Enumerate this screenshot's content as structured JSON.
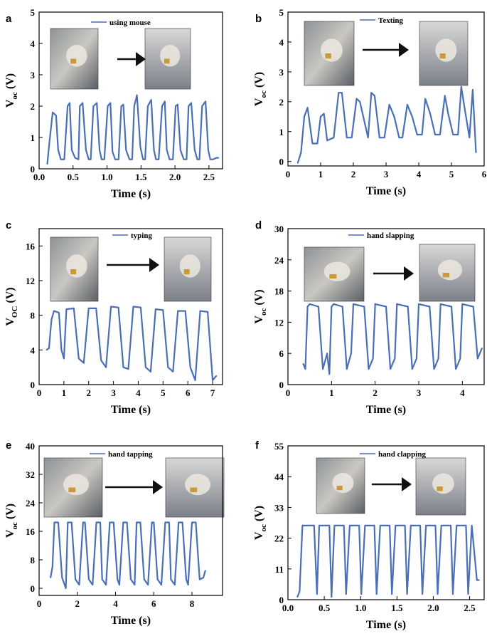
{
  "colors": {
    "line": "#4a6fb5",
    "axis": "#000000",
    "arrow": "#111111"
  },
  "chart_data": [
    {
      "type": "line",
      "panel": "a",
      "legend": "using  mouse",
      "xlabel": "Time (s)",
      "ylabel": "V",
      "ylabel_sub": "oc",
      "ylabel_unit": "(V)",
      "xlim": [
        0.0,
        2.7
      ],
      "ylim": [
        0,
        5
      ],
      "xticks": [
        "0.0",
        "0.5",
        "1.0",
        "1.5",
        "2.0",
        "2.5"
      ],
      "yticks": [
        "0",
        "1",
        "2",
        "3",
        "4",
        "5"
      ],
      "series": [
        {
          "name": "using  mouse",
          "x": [
            0.12,
            0.15,
            0.2,
            0.25,
            0.28,
            0.32,
            0.37,
            0.42,
            0.45,
            0.48,
            0.53,
            0.58,
            0.6,
            0.64,
            0.69,
            0.73,
            0.76,
            0.8,
            0.85,
            0.89,
            0.92,
            0.96,
            1.01,
            1.05,
            1.08,
            1.12,
            1.17,
            1.21,
            1.24,
            1.28,
            1.33,
            1.37,
            1.4,
            1.44,
            1.49,
            1.53,
            1.56,
            1.6,
            1.65,
            1.69,
            1.72,
            1.76,
            1.81,
            1.85,
            1.88,
            1.92,
            1.97,
            2.01,
            2.04,
            2.08,
            2.13,
            2.17,
            2.2,
            2.24,
            2.29,
            2.33,
            2.36,
            2.4,
            2.45,
            2.49,
            2.52,
            2.56,
            2.61,
            2.64
          ],
          "values": [
            0.15,
            0.8,
            1.8,
            1.7,
            0.6,
            0.3,
            0.3,
            2.0,
            2.1,
            0.6,
            0.35,
            0.3,
            2.0,
            2.1,
            0.6,
            0.3,
            0.3,
            2.0,
            2.1,
            0.6,
            0.3,
            0.3,
            2.0,
            2.1,
            0.55,
            0.3,
            0.3,
            2.0,
            2.05,
            0.6,
            0.3,
            0.3,
            2.0,
            2.35,
            0.7,
            0.3,
            0.3,
            2.0,
            2.2,
            0.6,
            0.3,
            0.3,
            2.0,
            2.15,
            0.6,
            0.3,
            0.3,
            2.0,
            2.05,
            0.6,
            0.3,
            0.3,
            2.0,
            2.1,
            0.6,
            0.3,
            0.3,
            2.0,
            2.15,
            0.6,
            0.3,
            0.3,
            0.35,
            0.35
          ]
        }
      ]
    },
    {
      "type": "line",
      "panel": "b",
      "legend": "Texting",
      "xlabel": "Time (s)",
      "ylabel": "V",
      "ylabel_sub": "oc",
      "ylabel_unit": "(V)",
      "xlim": [
        0,
        6
      ],
      "ylim": [
        -0.15,
        5
      ],
      "xticks": [
        "0",
        "1",
        "2",
        "3",
        "4",
        "5",
        "6"
      ],
      "yticks": [
        "0",
        "1",
        "2",
        "3",
        "4",
        "5"
      ],
      "series": [
        {
          "name": "Texting",
          "x": [
            0.3,
            0.4,
            0.5,
            0.6,
            0.75,
            0.9,
            1.0,
            1.1,
            1.2,
            1.4,
            1.55,
            1.65,
            1.8,
            1.95,
            2.1,
            2.2,
            2.45,
            2.55,
            2.65,
            2.8,
            2.95,
            3.1,
            3.25,
            3.4,
            3.5,
            3.65,
            3.8,
            3.95,
            4.1,
            4.2,
            4.35,
            4.5,
            4.65,
            4.8,
            4.9,
            5.05,
            5.2,
            5.3,
            5.4,
            5.55,
            5.65,
            5.75
          ],
          "values": [
            -0.05,
            0.3,
            1.5,
            1.8,
            0.6,
            0.6,
            1.5,
            1.6,
            0.7,
            0.8,
            2.3,
            2.3,
            0.8,
            0.8,
            2.1,
            2.0,
            0.8,
            2.3,
            2.2,
            0.8,
            0.8,
            1.9,
            1.5,
            0.8,
            0.8,
            1.9,
            1.5,
            0.9,
            0.9,
            2.1,
            1.6,
            0.9,
            0.9,
            2.2,
            1.6,
            0.9,
            0.9,
            2.5,
            1.8,
            0.8,
            2.4,
            0.3
          ]
        }
      ]
    },
    {
      "type": "line",
      "panel": "c",
      "legend": "typing",
      "xlabel": "Time (s)",
      "ylabel": "V",
      "ylabel_sub": "OC",
      "ylabel_unit": "(V)",
      "xlim": [
        0,
        7.4
      ],
      "ylim": [
        0,
        18
      ],
      "xticks": [
        "0",
        "1",
        "2",
        "3",
        "4",
        "5",
        "6",
        "7"
      ],
      "yticks": [
        "0",
        "4",
        "8",
        "12",
        "16"
      ],
      "series": [
        {
          "name": "typing",
          "x": [
            0.3,
            0.4,
            0.5,
            0.6,
            0.8,
            0.9,
            1.0,
            1.1,
            1.4,
            1.6,
            1.8,
            2.0,
            2.3,
            2.5,
            2.7,
            2.9,
            3.2,
            3.4,
            3.6,
            3.8,
            4.1,
            4.3,
            4.5,
            4.7,
            5.0,
            5.2,
            5.4,
            5.6,
            5.9,
            6.1,
            6.3,
            6.5,
            6.8,
            7.0,
            7.15
          ],
          "values": [
            4.0,
            4.2,
            7.5,
            8.5,
            8.3,
            4.0,
            3.0,
            8.7,
            8.8,
            3.0,
            2.5,
            8.8,
            8.8,
            2.8,
            2.0,
            9.0,
            8.9,
            2.0,
            1.8,
            9.0,
            8.9,
            2.0,
            1.5,
            8.7,
            8.6,
            2.0,
            1.5,
            8.5,
            8.5,
            2.0,
            0.5,
            8.5,
            8.4,
            0.5,
            1.0
          ]
        }
      ]
    },
    {
      "type": "line",
      "panel": "d",
      "legend": "hand slapping",
      "xlabel": "Time (s)",
      "ylabel": "V",
      "ylabel_sub": "oc",
      "ylabel_unit": "(V)",
      "xlim": [
        0,
        4.5
      ],
      "ylim": [
        0,
        30
      ],
      "xticks": [
        "0",
        "1",
        "2",
        "3",
        "4"
      ],
      "yticks": [
        "0",
        "6",
        "12",
        "18",
        "24",
        "30"
      ],
      "series": [
        {
          "name": "hand slapping",
          "x": [
            0.35,
            0.4,
            0.45,
            0.5,
            0.7,
            0.8,
            0.9,
            0.95,
            1.0,
            1.05,
            1.25,
            1.35,
            1.45,
            1.5,
            1.75,
            1.85,
            1.95,
            2.0,
            2.25,
            2.35,
            2.45,
            2.5,
            2.75,
            2.85,
            2.95,
            3.0,
            3.25,
            3.35,
            3.45,
            3.5,
            3.75,
            3.85,
            3.95,
            4.0,
            4.25,
            4.35,
            4.45
          ],
          "values": [
            4,
            3,
            15,
            15.5,
            15,
            3,
            6,
            2,
            15,
            15.5,
            15,
            3,
            6,
            15.5,
            15,
            3,
            5,
            15.5,
            15,
            3,
            5,
            15.5,
            15,
            3,
            5,
            15.5,
            15,
            3,
            5,
            15.5,
            15,
            3,
            5,
            15.5,
            15,
            5,
            7
          ]
        }
      ]
    },
    {
      "type": "line",
      "panel": "e",
      "legend": "hand tapping",
      "xlabel": "Time (s)",
      "ylabel": "V",
      "ylabel_sub": "oc",
      "ylabel_unit": "(V)",
      "xlim": [
        0,
        9.6
      ],
      "ylim": [
        -2,
        40
      ],
      "xticks": [
        "0",
        "2",
        "4",
        "6",
        "8"
      ],
      "yticks": [
        "0",
        "8",
        "16",
        "24",
        "32",
        "40"
      ],
      "series": [
        {
          "name": "hand tapping",
          "x": [
            0.6,
            0.7,
            0.8,
            1.0,
            1.2,
            1.4,
            1.5,
            1.7,
            1.9,
            2.1,
            2.3,
            2.4,
            2.6,
            2.8,
            3.0,
            3.2,
            3.3,
            3.5,
            3.7,
            3.9,
            4.1,
            4.2,
            4.4,
            4.6,
            4.8,
            5.0,
            5.1,
            5.3,
            5.5,
            5.7,
            5.9,
            6.0,
            6.2,
            6.4,
            6.6,
            6.8,
            6.9,
            7.1,
            7.3,
            7.5,
            7.7,
            7.8,
            8.0,
            8.2,
            8.4,
            8.6,
            8.7
          ],
          "values": [
            3,
            6,
            18.5,
            18.5,
            3,
            0,
            18.5,
            18.5,
            2.5,
            1,
            18.5,
            18.5,
            2.5,
            1,
            18.5,
            18.5,
            2.5,
            1,
            18.5,
            18.5,
            2.5,
            1,
            18.5,
            18.5,
            2.5,
            1,
            18.5,
            18.5,
            2.5,
            1,
            18.5,
            18.5,
            2.5,
            1,
            18.5,
            18.5,
            2.5,
            1,
            18.5,
            18.5,
            2.5,
            1,
            18.5,
            18.5,
            2.5,
            3,
            5
          ]
        }
      ]
    },
    {
      "type": "line",
      "panel": "f",
      "legend": "hand clapping",
      "xlabel": "Time (s)",
      "ylabel": "V",
      "ylabel_sub": "oc",
      "ylabel_unit": "(V)",
      "xlim": [
        0.0,
        2.7
      ],
      "ylim": [
        0,
        55
      ],
      "xticks": [
        "0.0",
        "0.5",
        "1.0",
        "1.5",
        "2.0",
        "2.5"
      ],
      "yticks": [
        "0",
        "11",
        "22",
        "33",
        "44",
        "55"
      ],
      "series": [
        {
          "name": "hand clapping",
          "x": [
            0.13,
            0.16,
            0.2,
            0.23,
            0.36,
            0.4,
            0.43,
            0.57,
            0.6,
            0.64,
            0.77,
            0.8,
            0.85,
            0.98,
            1.01,
            1.06,
            1.19,
            1.22,
            1.27,
            1.4,
            1.43,
            1.48,
            1.61,
            1.64,
            1.69,
            1.82,
            1.85,
            1.9,
            2.03,
            2.06,
            2.11,
            2.24,
            2.27,
            2.32,
            2.45,
            2.48,
            2.53,
            2.6,
            2.63
          ],
          "values": [
            1,
            3,
            26.5,
            26.5,
            26.5,
            2,
            26.5,
            26.5,
            1,
            26.5,
            26.5,
            2,
            26.5,
            26.5,
            2,
            26.5,
            26.5,
            2,
            26.5,
            26.5,
            2,
            26.5,
            26.5,
            2,
            26.5,
            26.5,
            2,
            26.5,
            26.5,
            2,
            26.5,
            26.5,
            2,
            26.5,
            26.5,
            2,
            26.5,
            7,
            7
          ]
        }
      ]
    }
  ]
}
